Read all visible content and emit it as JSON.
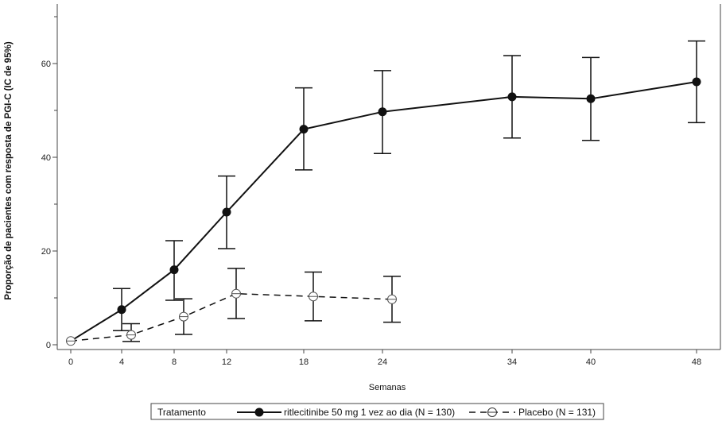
{
  "chart_data": {
    "type": "line",
    "title": "",
    "xlabel": "Semanas",
    "ylabel": "Proporção de pacientes com resposta de PGI-C (IC de 95%)",
    "x_ticks": [
      0,
      4,
      8,
      12,
      18,
      24,
      34,
      40,
      48
    ],
    "y_ticks": [
      0,
      20,
      40,
      60
    ],
    "x_positions": [
      "0",
      "4",
      "8",
      "12",
      "18",
      "24",
      "34",
      "40",
      "48"
    ],
    "ylim": [
      0,
      70
    ],
    "grid": false,
    "legend_placement": "bottom",
    "legend_title": "Tratamento",
    "series": [
      {
        "name": "ritlecitinibe 50 mg 1 vez ao dia (N = 130)",
        "style": "solid",
        "marker": "filled-circle",
        "color": "#111111",
        "points": [
          {
            "x": 0,
            "y": 0.8,
            "lo": null,
            "hi": null
          },
          {
            "x": 4,
            "y": 7.5,
            "lo": 3.0,
            "hi": 12.0
          },
          {
            "x": 8,
            "y": 16.0,
            "lo": 9.5,
            "hi": 22.2
          },
          {
            "x": 12,
            "y": 28.3,
            "lo": 20.5,
            "hi": 36.0
          },
          {
            "x": 18,
            "y": 46.0,
            "lo": 37.3,
            "hi": 54.8
          },
          {
            "x": 24,
            "y": 49.7,
            "lo": 40.8,
            "hi": 58.5
          },
          {
            "x": 34,
            "y": 52.9,
            "lo": 44.1,
            "hi": 61.7
          },
          {
            "x": 40,
            "y": 52.5,
            "lo": 43.6,
            "hi": 61.3
          },
          {
            "x": 48,
            "y": 56.1,
            "lo": 47.4,
            "hi": 64.8
          }
        ]
      },
      {
        "name": "Placebo (N = 131)",
        "style": "dashed",
        "marker": "open-circle",
        "color": "#111111",
        "points": [
          {
            "x": 0,
            "y": 0.8,
            "lo": null,
            "hi": null
          },
          {
            "x": 4,
            "y": 2.1,
            "lo": 0.7,
            "hi": 4.5
          },
          {
            "x": 8,
            "y": 6.0,
            "lo": 2.2,
            "hi": 9.8
          },
          {
            "x": 12,
            "y": 10.9,
            "lo": 5.6,
            "hi": 16.3
          },
          {
            "x": 18,
            "y": 10.3,
            "lo": 5.1,
            "hi": 15.5
          },
          {
            "x": 24,
            "y": 9.7,
            "lo": 4.8,
            "hi": 14.6
          }
        ]
      }
    ]
  }
}
